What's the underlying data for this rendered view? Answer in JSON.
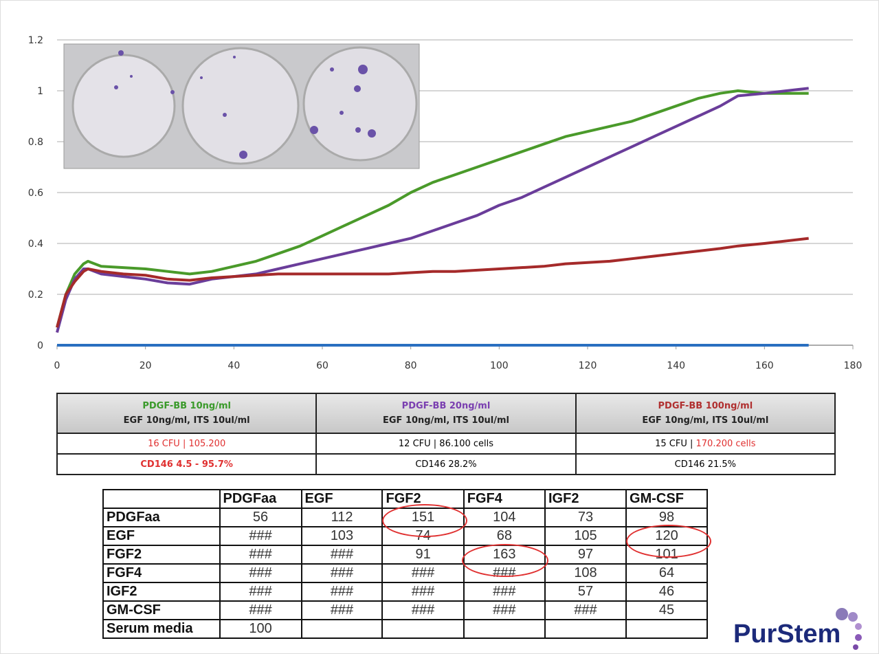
{
  "chart_data": {
    "type": "line",
    "x": [
      0,
      2,
      4,
      6,
      7,
      10,
      15,
      20,
      25,
      30,
      35,
      40,
      45,
      50,
      55,
      60,
      65,
      70,
      75,
      80,
      85,
      90,
      95,
      100,
      105,
      110,
      115,
      120,
      125,
      130,
      135,
      140,
      145,
      150,
      154,
      160,
      165,
      170
    ],
    "series": [
      {
        "color": "#4a9a2a",
        "values": [
          0.07,
          0.2,
          0.28,
          0.32,
          0.33,
          0.31,
          0.305,
          0.3,
          0.29,
          0.28,
          0.29,
          0.31,
          0.33,
          0.36,
          0.39,
          0.43,
          0.47,
          0.51,
          0.55,
          0.6,
          0.64,
          0.67,
          0.7,
          0.73,
          0.76,
          0.79,
          0.82,
          0.84,
          0.86,
          0.88,
          0.91,
          0.94,
          0.97,
          0.99,
          1.0,
          0.99,
          0.99,
          0.99
        ]
      },
      {
        "color": "#6a3d9a",
        "values": [
          0.05,
          0.18,
          0.26,
          0.3,
          0.3,
          0.28,
          0.27,
          0.26,
          0.245,
          0.24,
          0.26,
          0.27,
          0.28,
          0.3,
          0.32,
          0.34,
          0.36,
          0.38,
          0.4,
          0.42,
          0.45,
          0.48,
          0.51,
          0.55,
          0.58,
          0.62,
          0.66,
          0.7,
          0.74,
          0.78,
          0.82,
          0.86,
          0.9,
          0.94,
          0.98,
          0.99,
          1.0,
          1.01
        ]
      },
      {
        "color": "#a52a2a",
        "values": [
          0.07,
          0.2,
          0.25,
          0.29,
          0.3,
          0.29,
          0.28,
          0.275,
          0.26,
          0.255,
          0.265,
          0.27,
          0.275,
          0.28,
          0.28,
          0.28,
          0.28,
          0.28,
          0.28,
          0.285,
          0.29,
          0.29,
          0.295,
          0.3,
          0.305,
          0.31,
          0.32,
          0.325,
          0.33,
          0.34,
          0.35,
          0.36,
          0.37,
          0.38,
          0.39,
          0.4,
          0.41,
          0.42
        ]
      },
      {
        "color": "#2a6fc0",
        "values": [
          0,
          0,
          0,
          0,
          0,
          0,
          0,
          0,
          0,
          0,
          0,
          0,
          0,
          0,
          0,
          0,
          0,
          0,
          0,
          0,
          0,
          0,
          0,
          0,
          0,
          0,
          0,
          0,
          0,
          0,
          0,
          0,
          0,
          0,
          0,
          0,
          0,
          0
        ]
      }
    ],
    "xlim": [
      0,
      180
    ],
    "xticks": [
      0,
      20,
      40,
      60,
      80,
      100,
      120,
      140,
      160,
      180
    ],
    "ylim": [
      0,
      1.2
    ],
    "yticks": [
      0,
      0.2,
      0.4,
      0.6,
      0.8,
      1,
      1.2
    ],
    "grid": true
  },
  "conditions": {
    "headers": [
      {
        "title": "PDGF-BB 10ng/ml",
        "title_color": "#3a9a2a",
        "subtitle": "EGF 10ng/ml, ITS 10ul/ml"
      },
      {
        "title": "PDGF-BB 20ng/ml",
        "title_color": "#7a3fb0",
        "subtitle": "EGF 10ng/ml, ITS 10ul/ml"
      },
      {
        "title": "PDGF-BB 100ng/ml",
        "title_color": "#b03030",
        "subtitle": "EGF 10ng/ml, ITS 10ul/ml"
      }
    ],
    "cfu": [
      [
        "16 CFU | 105.200"
      ],
      [
        "12 CFU | 86.100 cells"
      ],
      [
        "15 CFU | ",
        "170.200 cells"
      ]
    ],
    "cd146": [
      "CD146 4.5 - 95.7%",
      "CD146 28.2%",
      "CD146 21.5%"
    ]
  },
  "matrix": {
    "columns": [
      "PDGFaa",
      "EGF",
      "FGF2",
      "FGF4",
      "IGF2",
      "GM-CSF"
    ],
    "rows": [
      {
        "label": "PDGFaa",
        "cells": [
          56,
          112,
          151,
          104,
          73,
          98
        ]
      },
      {
        "label": "EGF",
        "cells": [
          "###",
          103,
          74,
          68,
          105,
          120
        ]
      },
      {
        "label": "FGF2",
        "cells": [
          "###",
          "###",
          91,
          163,
          97,
          101
        ]
      },
      {
        "label": "FGF4",
        "cells": [
          "###",
          "###",
          "###",
          "###",
          108,
          64
        ]
      },
      {
        "label": "IGF2",
        "cells": [
          "###",
          "###",
          "###",
          "###",
          57,
          46
        ]
      },
      {
        "label": "GM-CSF",
        "cells": [
          "###",
          "###",
          "###",
          "###",
          "###",
          45
        ]
      },
      {
        "label": "Serum media",
        "cells": [
          100
        ]
      }
    ]
  },
  "logo": {
    "text": "PurStem"
  }
}
